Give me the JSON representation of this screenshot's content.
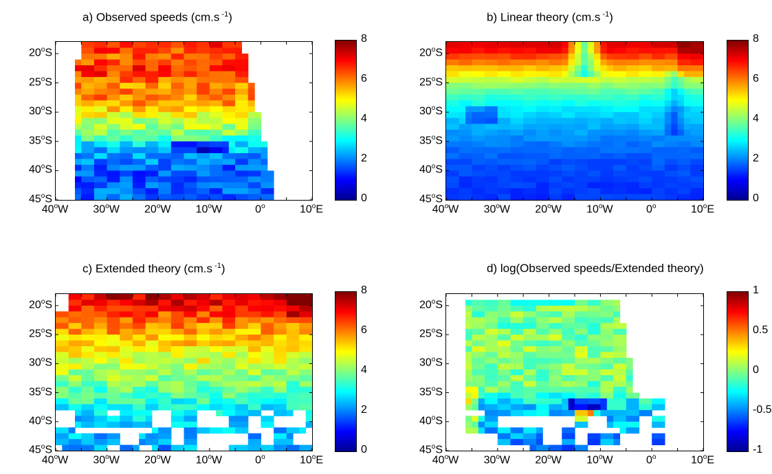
{
  "panels": [
    {
      "key": "a",
      "title": "a) Observed speeds (cm.s",
      "title_sup": "-1",
      "title_end": ")"
    },
    {
      "key": "b",
      "title": "b) Linear theory (cm.s",
      "title_sup": "-1",
      "title_end": ")"
    },
    {
      "key": "c",
      "title": "c) Extended theory (cm.s",
      "title_sup": "-1",
      "title_end": ")"
    },
    {
      "key": "d",
      "title": "d) log(Observed speeds/Extended theory)",
      "title_sup": "",
      "title_end": ""
    }
  ],
  "lat_ticks": [
    {
      "n": "20",
      "s": "o",
      "h": "S"
    },
    {
      "n": "25",
      "s": "o",
      "h": "S"
    },
    {
      "n": "30",
      "s": "o",
      "h": "S"
    },
    {
      "n": "35",
      "s": "o",
      "h": "S"
    },
    {
      "n": "40",
      "s": "o",
      "h": "S"
    },
    {
      "n": "45",
      "s": "o",
      "h": "S"
    }
  ],
  "lon_ticks": [
    {
      "n": "40",
      "s": "o",
      "h": "W"
    },
    {
      "n": "30",
      "s": "o",
      "h": "W"
    },
    {
      "n": "20",
      "s": "o",
      "h": "W"
    },
    {
      "n": "10",
      "s": "o",
      "h": "W"
    },
    {
      "n": "0",
      "s": "o",
      "h": ""
    },
    {
      "n": "10",
      "s": "o",
      "h": "E"
    }
  ],
  "colorbar_speed": [
    "8",
    "6",
    "4",
    "2",
    "0"
  ],
  "colorbar_log": [
    "1",
    "0.5",
    "0",
    "-0.5",
    "-1"
  ],
  "colors": {
    "jet": [
      "#00008f",
      "#0000ff",
      "#0080ff",
      "#00ffff",
      "#80ff80",
      "#ffff00",
      "#ff8000",
      "#ff0000",
      "#800000"
    ]
  },
  "chart_data": [
    {
      "type": "heatmap",
      "title": "a) Observed speeds (cm.s-1)",
      "xlim": [
        -40,
        10
      ],
      "ylim": [
        -45,
        -18
      ],
      "clim": [
        0,
        8
      ],
      "row_lat": [
        -19,
        -21,
        -23,
        -25,
        -27,
        -29,
        -31,
        -33,
        -35,
        -37,
        -39,
        -41,
        -43
      ],
      "row_values": [
        6.6,
        6.2,
        6.8,
        5.9,
        6.0,
        5.6,
        4.6,
        4.3,
        3.1,
        2.3,
        1.9,
        1.5,
        1.8
      ]
    },
    {
      "type": "heatmap",
      "title": "b) Linear theory (cm.s-1)",
      "xlim": [
        -40,
        10
      ],
      "ylim": [
        -45,
        -18
      ],
      "clim": [
        0,
        8
      ],
      "row_lat": [
        -19,
        -21,
        -23,
        -25,
        -27,
        -29,
        -31,
        -33,
        -35,
        -37,
        -39,
        -41,
        -43
      ],
      "row_values": [
        7.2,
        6.3,
        5.3,
        4.3,
        3.5,
        3.0,
        2.6,
        2.3,
        2.0,
        1.8,
        1.6,
        1.5,
        1.4
      ]
    },
    {
      "type": "heatmap",
      "title": "c) Extended theory (cm.s-1)",
      "xlim": [
        -40,
        10
      ],
      "ylim": [
        -45,
        -18
      ],
      "clim": [
        0,
        8
      ],
      "row_lat": [
        -19,
        -21,
        -23,
        -25,
        -27,
        -29,
        -31,
        -33,
        -35,
        -37,
        -39,
        -41,
        -43
      ],
      "row_values": [
        7.3,
        6.6,
        6.0,
        5.6,
        5.2,
        4.8,
        4.4,
        4.0,
        3.6,
        3.2,
        2.8,
        2.5,
        2.3
      ]
    },
    {
      "type": "heatmap",
      "title": "d) log(Observed speeds/Extended theory)",
      "xlim": [
        -40,
        10
      ],
      "ylim": [
        -45,
        -18
      ],
      "clim": [
        -1,
        1
      ],
      "row_lat": [
        -19,
        -21,
        -23,
        -25,
        -27,
        -29,
        -31,
        -33,
        -35,
        -37,
        -39,
        -41,
        -43
      ],
      "row_values": [
        -0.1,
        0.0,
        -0.05,
        0.0,
        0.05,
        0.05,
        0.0,
        0.0,
        -0.1,
        -0.3,
        -0.35,
        -0.4,
        -0.5
      ]
    }
  ]
}
